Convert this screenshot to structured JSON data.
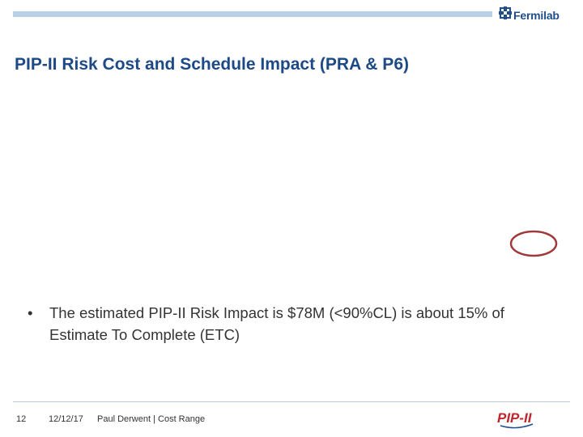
{
  "header": {
    "logo_text": "Fermilab",
    "logo_icon": "fermilab-star-icon",
    "bar_color": "#b9d1e6"
  },
  "slide": {
    "title": "PIP-II Risk Cost and Schedule Impact (PRA & P6)",
    "bullet_symbol": "•",
    "bullet_text": "The estimated PIP-II Risk Impact is $78M (<90%CL) is about 15% of Estimate To Complete (ETC)",
    "marker_color": "#a03a3a"
  },
  "footer": {
    "page_number": "12",
    "date": "12/12/17",
    "author": "Paul Derwent | Cost Range",
    "program_logo_text": "PIP-II"
  },
  "colors": {
    "title": "#1d4a86",
    "logo_red": "#c0262d"
  }
}
